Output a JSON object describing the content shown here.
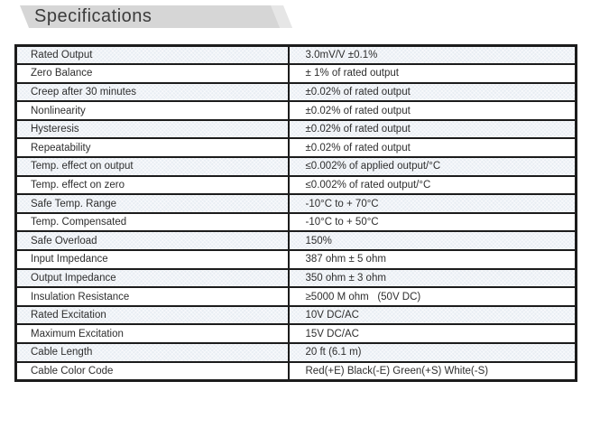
{
  "header": {
    "title": "Specifications"
  },
  "table": {
    "rows": [
      {
        "label": "Rated Output",
        "value": "3.0mV/V ±0.1%"
      },
      {
        "label": "Zero Balance",
        "value": "± 1% of rated output"
      },
      {
        "label": "Creep after 30 minutes",
        "value": "±0.02% of rated output"
      },
      {
        "label": "Nonlinearity",
        "value": "±0.02% of rated output"
      },
      {
        "label": "Hysteresis",
        "value": "±0.02% of rated output"
      },
      {
        "label": "Repeatability",
        "value": "±0.02% of rated output"
      },
      {
        "label": "Temp. effect on output",
        "value": "≤0.002% of applied output/°C"
      },
      {
        "label": "Temp. effect on zero",
        "value": "≤0.002% of rated output/°C"
      },
      {
        "label": "Safe Temp. Range",
        "value": "-10°C to + 70°C"
      },
      {
        "label": "Temp. Compensated",
        "value": "-10°C to + 50°C"
      },
      {
        "label": "Safe Overload",
        "value": "150%"
      },
      {
        "label": "Input Impedance",
        "value": "387 ohm ± 5 ohm"
      },
      {
        "label": "Output Impedance",
        "value": "350 ohm ± 3 ohm"
      },
      {
        "label": "Insulation Resistance",
        "value": "≥5000 M ohm   (50V DC)"
      },
      {
        "label": "Rated Excitation",
        "value": "10V DC/AC"
      },
      {
        "label": "Maximum Excitation",
        "value": "15V DC/AC"
      },
      {
        "label": "Cable Length",
        "value": "20 ft (6.1 m)"
      },
      {
        "label": "Cable Color Code",
        "value": "Red(+E) Black(-E) Green(+S) White(-S)"
      }
    ]
  },
  "colors": {
    "table_border": "#1c1c1c",
    "row_shade": "#e8edf3",
    "banner_gray": "#d6d6d6",
    "banner_gray_light": "#e6e6e6",
    "text": "#2e2e2e",
    "title_text": "#3b3b3b"
  }
}
